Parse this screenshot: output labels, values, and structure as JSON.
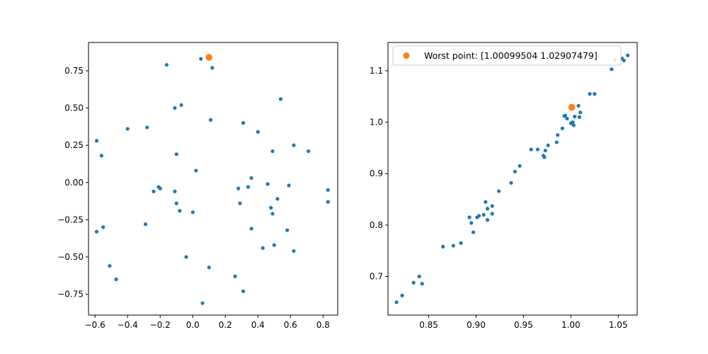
{
  "chart_data": [
    {
      "type": "scatter",
      "xlim": [
        -0.64,
        0.89
      ],
      "ylim": [
        -0.89,
        0.94
      ],
      "xticks": [
        -0.6,
        -0.4,
        -0.2,
        0.0,
        0.2,
        0.4,
        0.6,
        0.8
      ],
      "xtick_labels": [
        "−0.6",
        "−0.4",
        "−0.2",
        "0.0",
        "0.2",
        "0.4",
        "0.6",
        "0.8"
      ],
      "yticks": [
        -0.75,
        -0.5,
        -0.25,
        0.0,
        0.25,
        0.5,
        0.75
      ],
      "ytick_labels": [
        "−0.75",
        "−0.50",
        "−0.25",
        "0.00",
        "0.25",
        "0.50",
        "0.75"
      ],
      "grid": false,
      "series": [
        {
          "color": "#1f77b4",
          "marker_size": "small",
          "points": [
            [
              0.05,
              0.83
            ],
            [
              0.12,
              0.77
            ],
            [
              -0.16,
              0.79
            ],
            [
              0.54,
              0.56
            ],
            [
              -0.11,
              0.5
            ],
            [
              -0.07,
              0.52
            ],
            [
              0.11,
              0.42
            ],
            [
              0.31,
              0.4
            ],
            [
              -0.4,
              0.36
            ],
            [
              -0.28,
              0.37
            ],
            [
              0.4,
              0.34
            ],
            [
              -0.59,
              0.28
            ],
            [
              -0.56,
              0.18
            ],
            [
              0.49,
              0.21
            ],
            [
              0.62,
              0.25
            ],
            [
              0.71,
              0.21
            ],
            [
              -0.1,
              0.19
            ],
            [
              0.02,
              0.08
            ],
            [
              0.36,
              0.03
            ],
            [
              -0.21,
              -0.03
            ],
            [
              -0.2,
              -0.04
            ],
            [
              -0.24,
              -0.06
            ],
            [
              -0.11,
              -0.06
            ],
            [
              0.28,
              -0.04
            ],
            [
              0.34,
              -0.03
            ],
            [
              0.46,
              -0.01
            ],
            [
              0.59,
              -0.02
            ],
            [
              0.83,
              -0.05
            ],
            [
              0.52,
              -0.11
            ],
            [
              0.83,
              -0.13
            ],
            [
              -0.1,
              -0.14
            ],
            [
              0.29,
              -0.14
            ],
            [
              0.48,
              -0.17
            ],
            [
              -0.08,
              -0.19
            ],
            [
              -0.0,
              -0.2
            ],
            [
              0.49,
              -0.21
            ],
            [
              -0.29,
              -0.28
            ],
            [
              -0.55,
              -0.3
            ],
            [
              0.36,
              -0.31
            ],
            [
              -0.59,
              -0.33
            ],
            [
              0.58,
              -0.32
            ],
            [
              0.5,
              -0.42
            ],
            [
              0.43,
              -0.44
            ],
            [
              0.62,
              -0.46
            ],
            [
              -0.04,
              -0.5
            ],
            [
              -0.51,
              -0.56
            ],
            [
              0.1,
              -0.57
            ],
            [
              -0.47,
              -0.65
            ],
            [
              0.26,
              -0.63
            ],
            [
              0.31,
              -0.73
            ],
            [
              0.06,
              -0.81
            ]
          ]
        },
        {
          "color": "#ff7f0e",
          "marker_size": "large",
          "points": [
            [
              0.1,
              0.84
            ]
          ]
        }
      ]
    },
    {
      "type": "scatter",
      "xlim": [
        0.807,
        1.07
      ],
      "ylim": [
        0.625,
        1.155
      ],
      "xticks": [
        0.85,
        0.9,
        0.95,
        1.0,
        1.05
      ],
      "xtick_labels": [
        "0.85",
        "0.90",
        "0.95",
        "1.00",
        "1.05"
      ],
      "yticks": [
        0.7,
        0.8,
        0.9,
        1.0,
        1.1
      ],
      "ytick_labels": [
        "0.7",
        "0.8",
        "0.9",
        "1.0",
        "1.1"
      ],
      "grid": false,
      "legend": {
        "placement": "upper-left",
        "entries": [
          {
            "label": "Worst point: [1.00099504 1.02907479]",
            "color": "#ff7f0e"
          }
        ]
      },
      "series": [
        {
          "color": "#1f77b4",
          "marker_size": "small",
          "points": [
            [
              0.816,
              0.65
            ],
            [
              0.822,
              0.663
            ],
            [
              0.834,
              0.688
            ],
            [
              0.84,
              0.7
            ],
            [
              0.843,
              0.686
            ],
            [
              0.865,
              0.758
            ],
            [
              0.876,
              0.76
            ],
            [
              0.884,
              0.765
            ],
            [
              0.893,
              0.815
            ],
            [
              0.895,
              0.804
            ],
            [
              0.897,
              0.786
            ],
            [
              0.901,
              0.815
            ],
            [
              0.903,
              0.818
            ],
            [
              0.908,
              0.82
            ],
            [
              0.91,
              0.845
            ],
            [
              0.912,
              0.81
            ],
            [
              0.912,
              0.832
            ],
            [
              0.917,
              0.822
            ],
            [
              0.917,
              0.837
            ],
            [
              0.924,
              0.866
            ],
            [
              0.937,
              0.882
            ],
            [
              0.941,
              0.904
            ],
            [
              0.946,
              0.915
            ],
            [
              0.958,
              0.947
            ],
            [
              0.965,
              0.947
            ],
            [
              0.971,
              0.935
            ],
            [
              0.972,
              0.932
            ],
            [
              0.973,
              0.945
            ],
            [
              0.976,
              0.955
            ],
            [
              0.985,
              0.961
            ],
            [
              0.986,
              0.975
            ],
            [
              0.991,
              0.988
            ],
            [
              0.993,
              1.012
            ],
            [
              0.994,
              1.013
            ],
            [
              0.996,
              1.007
            ],
            [
              1.0,
              0.998
            ],
            [
              1.002,
              1.0
            ],
            [
              1.003,
              0.994
            ],
            [
              1.004,
              1.011
            ],
            [
              1.008,
              1.032
            ],
            [
              1.009,
              1.01
            ],
            [
              1.01,
              1.019
            ],
            [
              1.02,
              1.055
            ],
            [
              1.025,
              1.055
            ],
            [
              1.043,
              1.103
            ],
            [
              1.046,
              1.121
            ],
            [
              1.054,
              1.124
            ],
            [
              1.056,
              1.12
            ],
            [
              1.06,
              1.13
            ]
          ]
        },
        {
          "color": "#ff7f0e",
          "marker_size": "large",
          "points": [
            [
              1.00099504,
              1.02907479
            ]
          ]
        }
      ]
    }
  ]
}
